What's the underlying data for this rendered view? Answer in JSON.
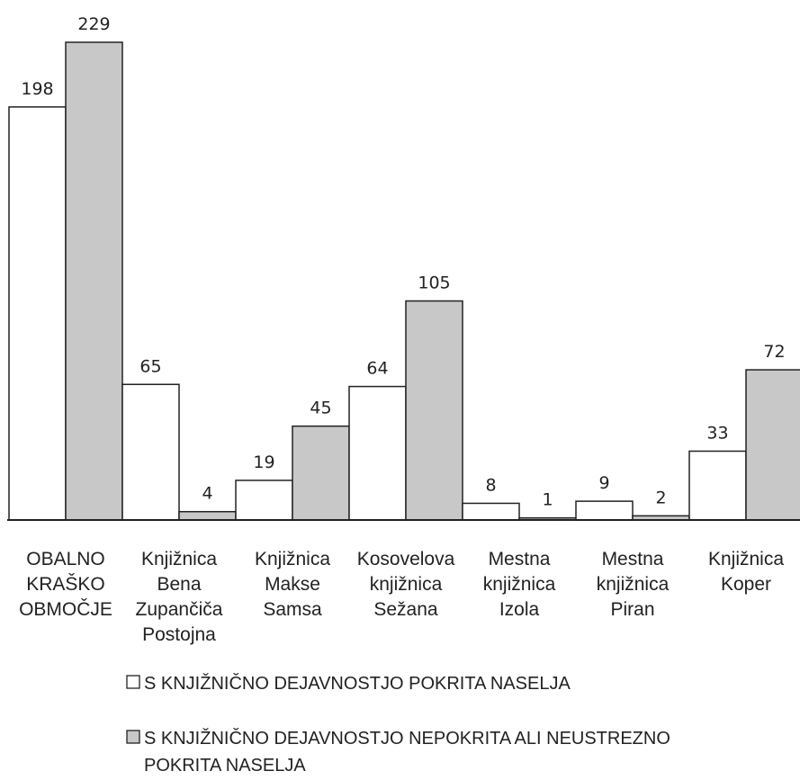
{
  "chart_data": {
    "type": "bar",
    "title": "",
    "xlabel": "",
    "ylabel": "",
    "ylim": [
      0,
      229
    ],
    "grid": false,
    "legend_position": "bottom",
    "categories": [
      [
        "OBALNO",
        "KRAŠKO",
        "OBMOČJE"
      ],
      [
        "Knjižnica",
        "Bena",
        "Zupančiča",
        "Postojna"
      ],
      [
        "Knjižnica",
        "Makse",
        "Samsa"
      ],
      [
        "Kosovelova",
        "knjižnica",
        "Sežana"
      ],
      [
        "Mestna",
        "knjižnica",
        "Izola"
      ],
      [
        "Mestna",
        "knjižnica",
        "Piran"
      ],
      [
        "Knjižnica",
        "Koper"
      ]
    ],
    "series": [
      {
        "name": "S KNJIŽNIČNO  DEJAVNOSTJO  POKRITA  NASELJA",
        "values": [
          198,
          65,
          19,
          64,
          8,
          9,
          33
        ],
        "color": "#ffffff"
      },
      {
        "name": "S KNJIŽNIČNO  DEJAVNOSTJO  NEPOKRITA  ALI NEUSTREZNO",
        "name_line2": "POKRITA NASELJA",
        "values": [
          229,
          4,
          45,
          105,
          1,
          2,
          72
        ],
        "color": "#c8c8c8"
      }
    ]
  }
}
